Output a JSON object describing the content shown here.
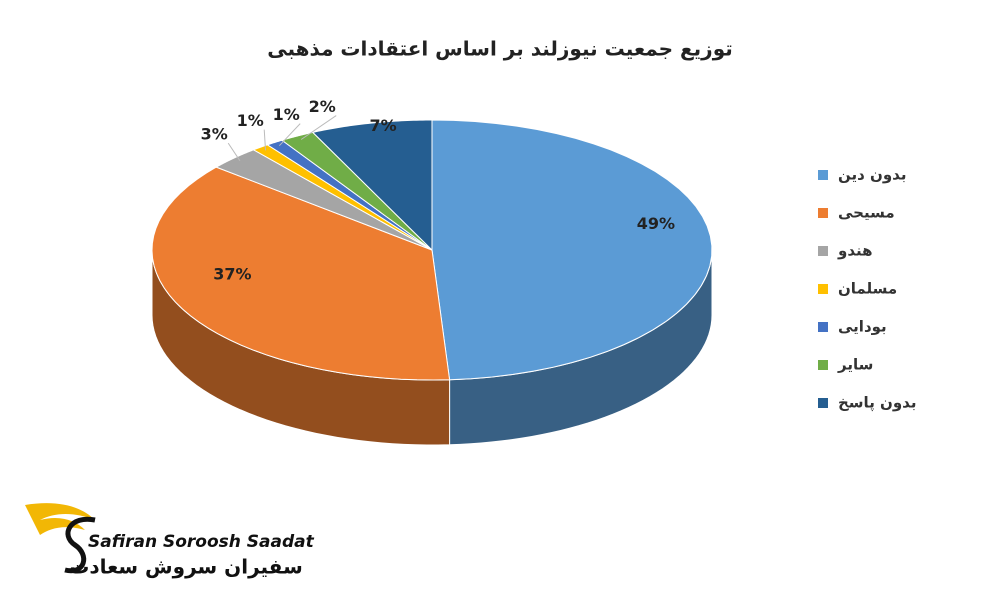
{
  "chart_data": {
    "type": "pie",
    "title": "توزیع جمعیت نیوزلند بر اساس اعتقادات مذهبی",
    "categories": [
      "بدون دین",
      "مسیحی",
      "هندو",
      "مسلمان",
      "بودایی",
      "سایر",
      "بدون پاسخ"
    ],
    "values": [
      49,
      37,
      3,
      1,
      1,
      2,
      7
    ],
    "value_labels": [
      "49%",
      "37%",
      "3%",
      "1%",
      "1%",
      "2%",
      "7%"
    ],
    "colors": [
      "#5b9bd5",
      "#ed7d31",
      "#a5a5a5",
      "#ffc000",
      "#4472c4",
      "#70ad47",
      "#255e91"
    ],
    "legend": "right"
  },
  "logo": {
    "name_en": "Safiran Soroosh Saadat",
    "name_fa": "سفیران سروش سعادت"
  }
}
